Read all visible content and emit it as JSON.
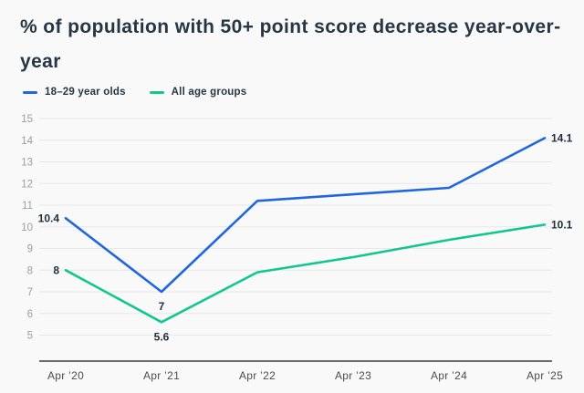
{
  "page": {
    "background": "#f9f9f9"
  },
  "header": {
    "title": "% of population with 50+ point score decrease year-over-year"
  },
  "legend": [
    {
      "label": "18–29 year olds",
      "color": "#2066e0"
    },
    {
      "label": "All age groups",
      "color": "#12c78e"
    }
  ],
  "chart_data": {
    "type": "line",
    "title": "% of population with 50+ point score decrease year-over-year",
    "categories": [
      "Apr ’20",
      "Apr ’21",
      "Apr ’22",
      "Apr ’23",
      "Apr ’24",
      "Apr ’25"
    ],
    "series": [
      {
        "name": "18–29 year olds",
        "color": "#2066e0",
        "values": [
          10.4,
          7,
          11.2,
          11.5,
          11.8,
          14.1
        ]
      },
      {
        "name": "All age groups",
        "color": "#12c78e",
        "values": [
          8,
          5.6,
          7.9,
          8.6,
          9.4,
          10.1
        ]
      }
    ],
    "point_labels": [
      {
        "series": 0,
        "index": 0,
        "text": "10.4",
        "position": "left"
      },
      {
        "series": 0,
        "index": 1,
        "text": "7",
        "position": "below"
      },
      {
        "series": 0,
        "index": 5,
        "text": "14.1",
        "position": "right"
      },
      {
        "series": 1,
        "index": 0,
        "text": "8",
        "position": "left"
      },
      {
        "series": 1,
        "index": 1,
        "text": "5.6",
        "position": "below"
      },
      {
        "series": 1,
        "index": 5,
        "text": "10.1",
        "position": "right"
      }
    ],
    "ylim": [
      5,
      15
    ],
    "yticks": [
      "5",
      "6",
      "7",
      "8",
      "9",
      "10",
      "11",
      "12",
      "13",
      "14",
      "15"
    ],
    "grid": true,
    "legend_position": "top-left",
    "xlabel": "",
    "ylabel": "",
    "grid_color": "#e7e7e7",
    "axis_line_color": "#3d3d3d"
  }
}
